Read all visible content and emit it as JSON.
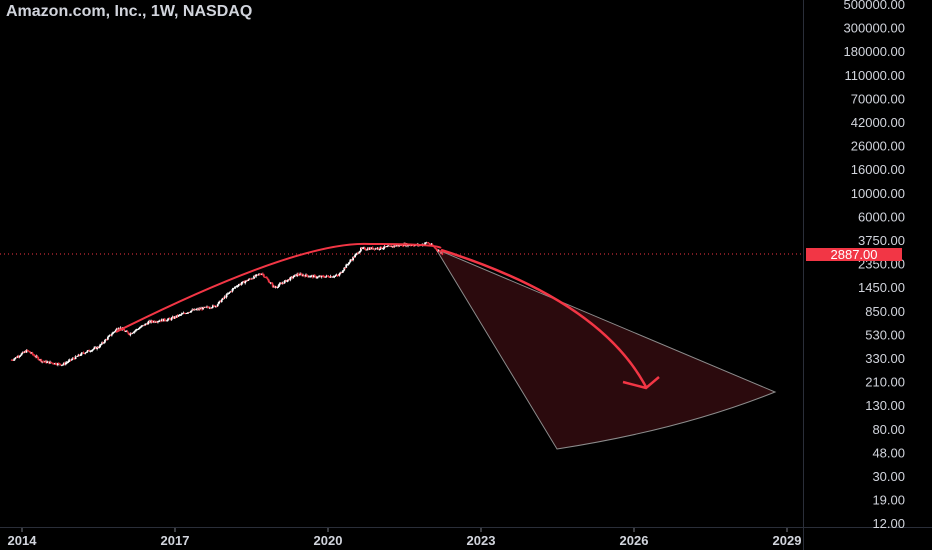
{
  "header": {
    "title": "Amazon.com, Inc., 1W, NASDAQ"
  },
  "price_tag": {
    "value": "2887.00",
    "color": "#f23645"
  },
  "colors": {
    "background": "#000000",
    "up_candle": "#ffffff",
    "down_candle": "#f23645",
    "arc": "#f23645",
    "fill": "#3a0d12",
    "cone_edge": "#8c8c8c"
  },
  "chart_data": {
    "type": "candlestick",
    "title": "Amazon.com, Inc., 1W, NASDAQ",
    "y_scale": "log",
    "y_ticks": [
      "500000.00",
      "300000.00",
      "180000.00",
      "110000.00",
      "70000.00",
      "42000.00",
      "26000.00",
      "16000.00",
      "10000.00",
      "6000.00",
      "3750.00",
      "2350.00",
      "1450.00",
      "850.00",
      "530.00",
      "330.00",
      "210.00",
      "130.00",
      "80.00",
      "48.00",
      "30.00",
      "19.00",
      "12.00"
    ],
    "x_ticks": [
      "2014",
      "2017",
      "2020",
      "2023",
      "2026",
      "2029"
    ],
    "last_price": 2887,
    "price_path": [
      {
        "t": 2013.8,
        "v": 330
      },
      {
        "t": 2014.1,
        "v": 400
      },
      {
        "t": 2014.4,
        "v": 320
      },
      {
        "t": 2014.8,
        "v": 300
      },
      {
        "t": 2015.2,
        "v": 380
      },
      {
        "t": 2015.5,
        "v": 430
      },
      {
        "t": 2015.9,
        "v": 650
      },
      {
        "t": 2016.1,
        "v": 560
      },
      {
        "t": 2016.5,
        "v": 720
      },
      {
        "t": 2016.9,
        "v": 760
      },
      {
        "t": 2017.3,
        "v": 900
      },
      {
        "t": 2017.8,
        "v": 1000
      },
      {
        "t": 2018.2,
        "v": 1500
      },
      {
        "t": 2018.7,
        "v": 1950
      },
      {
        "t": 2018.95,
        "v": 1450
      },
      {
        "t": 2019.4,
        "v": 1900
      },
      {
        "t": 2019.8,
        "v": 1800
      },
      {
        "t": 2020.2,
        "v": 1850
      },
      {
        "t": 2020.4,
        "v": 2400
      },
      {
        "t": 2020.65,
        "v": 3200
      },
      {
        "t": 2021.0,
        "v": 3250
      },
      {
        "t": 2021.5,
        "v": 3500
      },
      {
        "t": 2021.8,
        "v": 3450
      },
      {
        "t": 2021.95,
        "v": 3650
      },
      {
        "t": 2022.25,
        "v": 2887
      }
    ]
  }
}
